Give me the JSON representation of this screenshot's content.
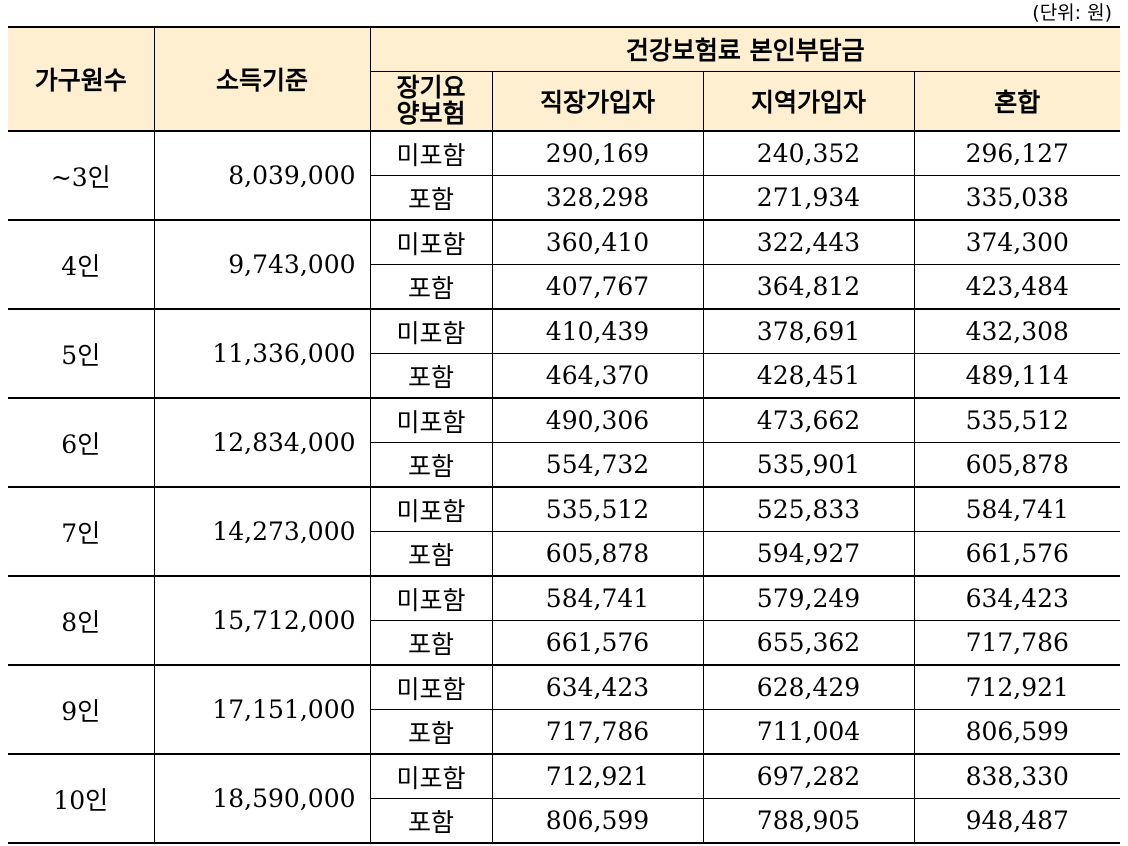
{
  "unit_label": "(단위: 원)",
  "table": {
    "headers": {
      "household": "가구원수",
      "income": "소득기준",
      "group": "건강보험료 본인부담금",
      "ltc_line1": "장기요",
      "ltc_line2": "양보험",
      "employee": "직장가입자",
      "regional": "지역가입자",
      "mixed": "혼합"
    },
    "rows": [
      {
        "household": "~3인",
        "income": "8,039,000",
        "sub": [
          {
            "ltc": "미포함",
            "employee": "290,169",
            "regional": "240,352",
            "mixed": "296,127"
          },
          {
            "ltc": "포함",
            "employee": "328,298",
            "regional": "271,934",
            "mixed": "335,038"
          }
        ]
      },
      {
        "household": "4인",
        "income": "9,743,000",
        "sub": [
          {
            "ltc": "미포함",
            "employee": "360,410",
            "regional": "322,443",
            "mixed": "374,300"
          },
          {
            "ltc": "포함",
            "employee": "407,767",
            "regional": "364,812",
            "mixed": "423,484"
          }
        ]
      },
      {
        "household": "5인",
        "income": "11,336,000",
        "sub": [
          {
            "ltc": "미포함",
            "employee": "410,439",
            "regional": "378,691",
            "mixed": "432,308"
          },
          {
            "ltc": "포함",
            "employee": "464,370",
            "regional": "428,451",
            "mixed": "489,114"
          }
        ]
      },
      {
        "household": "6인",
        "income": "12,834,000",
        "sub": [
          {
            "ltc": "미포함",
            "employee": "490,306",
            "regional": "473,662",
            "mixed": "535,512"
          },
          {
            "ltc": "포함",
            "employee": "554,732",
            "regional": "535,901",
            "mixed": "605,878"
          }
        ]
      },
      {
        "household": "7인",
        "income": "14,273,000",
        "sub": [
          {
            "ltc": "미포함",
            "employee": "535,512",
            "regional": "525,833",
            "mixed": "584,741"
          },
          {
            "ltc": "포함",
            "employee": "605,878",
            "regional": "594,927",
            "mixed": "661,576"
          }
        ]
      },
      {
        "household": "8인",
        "income": "15,712,000",
        "sub": [
          {
            "ltc": "미포함",
            "employee": "584,741",
            "regional": "579,249",
            "mixed": "634,423"
          },
          {
            "ltc": "포함",
            "employee": "661,576",
            "regional": "655,362",
            "mixed": "717,786"
          }
        ]
      },
      {
        "household": "9인",
        "income": "17,151,000",
        "sub": [
          {
            "ltc": "미포함",
            "employee": "634,423",
            "regional": "628,429",
            "mixed": "712,921"
          },
          {
            "ltc": "포함",
            "employee": "717,786",
            "regional": "711,004",
            "mixed": "806,599"
          }
        ]
      },
      {
        "household": "10인",
        "income": "18,590,000",
        "sub": [
          {
            "ltc": "미포함",
            "employee": "712,921",
            "regional": "697,282",
            "mixed": "838,330"
          },
          {
            "ltc": "포함",
            "employee": "806,599",
            "regional": "788,905",
            "mixed": "948,487"
          }
        ]
      }
    ]
  },
  "colors": {
    "header_background": "#fdefcf",
    "border": "#000000"
  }
}
